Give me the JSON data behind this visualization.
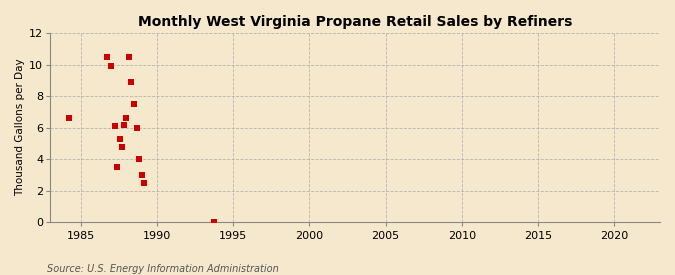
{
  "title": "Monthly West Virginia Propane Retail Sales by Refiners",
  "ylabel": "Thousand Gallons per Day",
  "source": "Source: U.S. Energy Information Administration",
  "background_color": "#f5e8cc",
  "plot_bg_color": "#f5e8cc",
  "marker_color": "#cc0000",
  "marker_size": 18,
  "xlim": [
    1983,
    2023
  ],
  "ylim": [
    0,
    12
  ],
  "xticks": [
    1985,
    1990,
    1995,
    2000,
    2005,
    2010,
    2015,
    2020
  ],
  "yticks": [
    0,
    2,
    4,
    6,
    8,
    10,
    12
  ],
  "x_data": [
    1984.2,
    1986.75,
    1987.0,
    1987.25,
    1987.4,
    1987.55,
    1987.7,
    1987.85,
    1988.0,
    1988.15,
    1988.3,
    1988.5,
    1988.7,
    1988.85,
    1989.0,
    1989.15,
    1993.75
  ],
  "y_data": [
    6.6,
    10.5,
    9.9,
    6.1,
    3.5,
    5.3,
    4.8,
    6.2,
    6.6,
    10.5,
    8.9,
    7.5,
    6.0,
    4.0,
    3.0,
    2.5,
    0.05
  ]
}
